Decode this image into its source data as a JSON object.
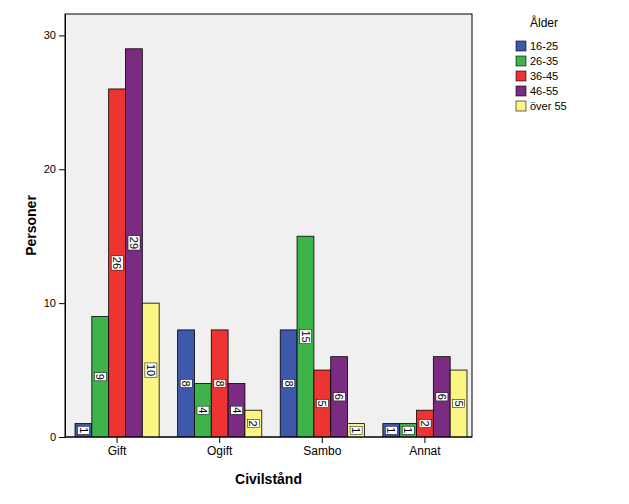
{
  "chart_data": {
    "type": "bar",
    "x_label": "Civilstånd",
    "y_label": "Personer",
    "legend_title": "Ålder",
    "legend": "right",
    "categories": [
      "Gift",
      "Ogift",
      "Sambo",
      "Annat"
    ],
    "series": [
      {
        "name": "16-25",
        "color": "#3e58ac",
        "values": [
          1,
          8,
          8,
          1
        ]
      },
      {
        "name": "26-35",
        "color": "#3cb44a",
        "values": [
          9,
          4,
          15,
          1
        ]
      },
      {
        "name": "36-45",
        "color": "#ee3333",
        "values": [
          26,
          8,
          5,
          2
        ]
      },
      {
        "name": "46-55",
        "color": "#7b2c82",
        "values": [
          29,
          4,
          6,
          6
        ]
      },
      {
        "name": "över 55",
        "color": "#fbf584",
        "values": [
          10,
          2,
          1,
          5
        ]
      }
    ],
    "ylim": [
      0,
      31.6
    ],
    "yticks": [
      0,
      10,
      20,
      30
    ],
    "grid": false,
    "data_labels": true
  }
}
